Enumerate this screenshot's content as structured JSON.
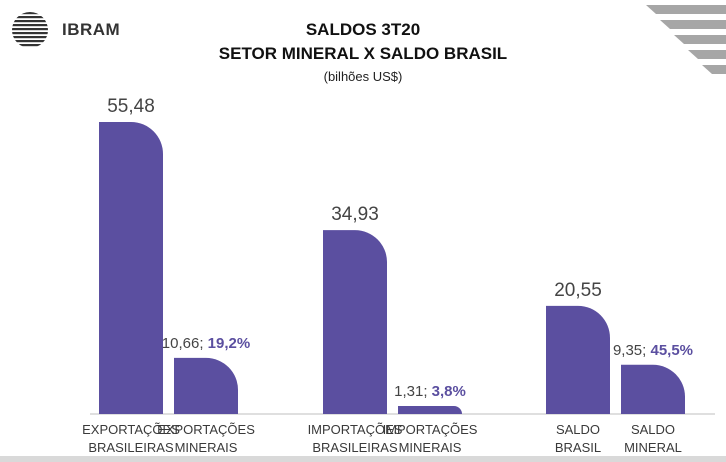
{
  "brand": {
    "logo_icon": "ibram-logo-icon",
    "logo_text": "IBRAM"
  },
  "colors": {
    "bar": "#5b4fa0",
    "accent_text": "#5b4fa0",
    "label_text": "#3a3a3a",
    "value_text": "#444444",
    "corner_stripes": "#a6a6a6"
  },
  "chart_data": {
    "type": "bar",
    "title": "SALDOS 3T20",
    "subtitle": "SETOR MINERAL X SALDO BRASIL",
    "unit": "(bilhões US$)",
    "categories": [
      [
        "EXPORTAÇÕES",
        "BRASILEIRAS"
      ],
      [
        "EXPORTAÇÕES",
        "MINERAIS"
      ],
      [
        "IMPORTAÇÕES",
        "BRASILEIRAS"
      ],
      [
        "IMPORTAÇÕES",
        "MINERAIS"
      ],
      [
        "SALDO",
        "BRASIL"
      ],
      [
        "SALDO",
        "MINERAL"
      ]
    ],
    "values": [
      55.48,
      10.66,
      34.93,
      1.31,
      20.55,
      9.35
    ],
    "value_labels": [
      "55,48",
      "10,66; ",
      "34,93",
      "1,31; ",
      "20,55",
      "9,35; "
    ],
    "share_labels": [
      "",
      "19,2%",
      "",
      "3,8%",
      "",
      "45,5%"
    ],
    "ylim": [
      0,
      55.48
    ],
    "grid": false,
    "legend": "none"
  }
}
